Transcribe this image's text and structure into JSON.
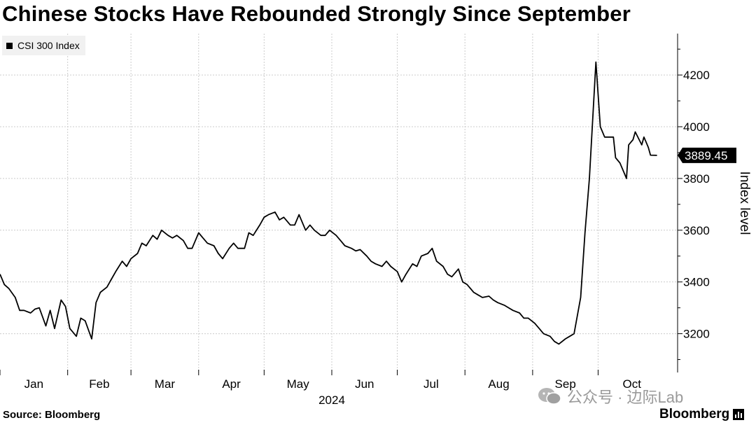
{
  "title": "Chinese Stocks Have Rebounded Strongly Since September",
  "source": "Source: Bloomberg",
  "brand": "Bloomberg",
  "watermark": "公众号 · 边际Lab",
  "colors": {
    "line": "#000000",
    "grid": "#cccccc",
    "legend_bg": "#f1f1f1",
    "watermark": "#9a9a9a"
  },
  "icons": {
    "brand": "bar-chart-icon",
    "watermark": "wechat-icon"
  },
  "chart_data": {
    "type": "line",
    "series": [
      {
        "name": "CSI 300 Index",
        "last_value_label": "3889.45",
        "x": [
          "2024-01-01",
          "2024-01-03",
          "2024-01-05",
          "2024-01-08",
          "2024-01-10",
          "2024-01-12",
          "2024-01-15",
          "2024-01-17",
          "2024-01-19",
          "2024-01-22",
          "2024-01-24",
          "2024-01-26",
          "2024-01-29",
          "2024-01-31",
          "2024-02-02",
          "2024-02-05",
          "2024-02-07",
          "2024-02-09",
          "2024-02-12",
          "2024-02-14",
          "2024-02-16",
          "2024-02-19",
          "2024-02-21",
          "2024-02-23",
          "2024-02-26",
          "2024-02-28",
          "2024-03-01",
          "2024-03-04",
          "2024-03-06",
          "2024-03-08",
          "2024-03-11",
          "2024-03-13",
          "2024-03-15",
          "2024-03-18",
          "2024-03-20",
          "2024-03-22",
          "2024-03-25",
          "2024-03-27",
          "2024-03-29",
          "2024-04-01",
          "2024-04-03",
          "2024-04-05",
          "2024-04-08",
          "2024-04-10",
          "2024-04-12",
          "2024-04-15",
          "2024-04-17",
          "2024-04-19",
          "2024-04-22",
          "2024-04-24",
          "2024-04-26",
          "2024-04-29",
          "2024-05-01",
          "2024-05-03",
          "2024-05-06",
          "2024-05-08",
          "2024-05-10",
          "2024-05-13",
          "2024-05-15",
          "2024-05-17",
          "2024-05-20",
          "2024-05-22",
          "2024-05-24",
          "2024-05-27",
          "2024-05-29",
          "2024-05-31",
          "2024-06-03",
          "2024-06-05",
          "2024-06-07",
          "2024-06-10",
          "2024-06-12",
          "2024-06-14",
          "2024-06-17",
          "2024-06-19",
          "2024-06-21",
          "2024-06-24",
          "2024-06-26",
          "2024-06-28",
          "2024-07-01",
          "2024-07-03",
          "2024-07-05",
          "2024-07-08",
          "2024-07-10",
          "2024-07-12",
          "2024-07-15",
          "2024-07-17",
          "2024-07-19",
          "2024-07-22",
          "2024-07-24",
          "2024-07-26",
          "2024-07-29",
          "2024-07-31",
          "2024-08-02",
          "2024-08-05",
          "2024-08-07",
          "2024-08-09",
          "2024-08-12",
          "2024-08-14",
          "2024-08-16",
          "2024-08-19",
          "2024-08-21",
          "2024-08-23",
          "2024-08-26",
          "2024-08-28",
          "2024-08-30",
          "2024-09-02",
          "2024-09-04",
          "2024-09-06",
          "2024-09-09",
          "2024-09-11",
          "2024-09-13",
          "2024-09-16",
          "2024-09-18",
          "2024-09-20",
          "2024-09-23",
          "2024-09-25",
          "2024-09-27",
          "2024-09-30",
          "2024-10-02",
          "2024-10-04",
          "2024-10-06",
          "2024-10-08",
          "2024-10-09",
          "2024-10-10",
          "2024-10-11",
          "2024-10-14",
          "2024-10-15",
          "2024-10-16",
          "2024-10-17",
          "2024-10-18",
          "2024-10-21",
          "2024-10-22",
          "2024-10-23",
          "2024-10-24",
          "2024-10-25",
          "2024-10-28"
        ],
        "y": [
          3430,
          3390,
          3375,
          3340,
          3290,
          3290,
          3280,
          3295,
          3300,
          3230,
          3290,
          3220,
          3330,
          3305,
          3220,
          3190,
          3260,
          3250,
          3180,
          3320,
          3360,
          3380,
          3410,
          3440,
          3480,
          3460,
          3490,
          3510,
          3550,
          3540,
          3580,
          3565,
          3600,
          3580,
          3570,
          3580,
          3560,
          3530,
          3530,
          3590,
          3570,
          3550,
          3540,
          3510,
          3490,
          3530,
          3550,
          3530,
          3530,
          3590,
          3580,
          3620,
          3650,
          3660,
          3670,
          3640,
          3650,
          3620,
          3620,
          3660,
          3600,
          3620,
          3600,
          3580,
          3580,
          3600,
          3580,
          3560,
          3540,
          3530,
          3520,
          3525,
          3500,
          3480,
          3470,
          3460,
          3480,
          3460,
          3440,
          3400,
          3430,
          3470,
          3460,
          3500,
          3510,
          3530,
          3480,
          3460,
          3430,
          3420,
          3450,
          3400,
          3390,
          3360,
          3350,
          3340,
          3345,
          3330,
          3320,
          3310,
          3300,
          3290,
          3280,
          3260,
          3260,
          3240,
          3220,
          3200,
          3190,
          3170,
          3160,
          3180,
          3190,
          3200,
          3340,
          3590,
          3800,
          4250,
          4000,
          3960,
          3960,
          3960,
          3880,
          3870,
          3860,
          3800,
          3930,
          3940,
          3950,
          3980,
          3930,
          3960,
          3940,
          3920,
          3890,
          3889.45
        ]
      }
    ],
    "x_ticks": [
      "Jan",
      "Feb",
      "Mar",
      "Apr",
      "May",
      "Jun",
      "Jul",
      "Aug",
      "Sep",
      "Oct"
    ],
    "x_year_label": "2024",
    "y_ticks": [
      3200,
      3400,
      3600,
      3800,
      4000,
      4200
    ],
    "ylabel": "Index level",
    "xlabel": "",
    "ylim": [
      3050,
      4360
    ],
    "grid": true,
    "y_axis_side": "right",
    "legend": "top-left"
  }
}
